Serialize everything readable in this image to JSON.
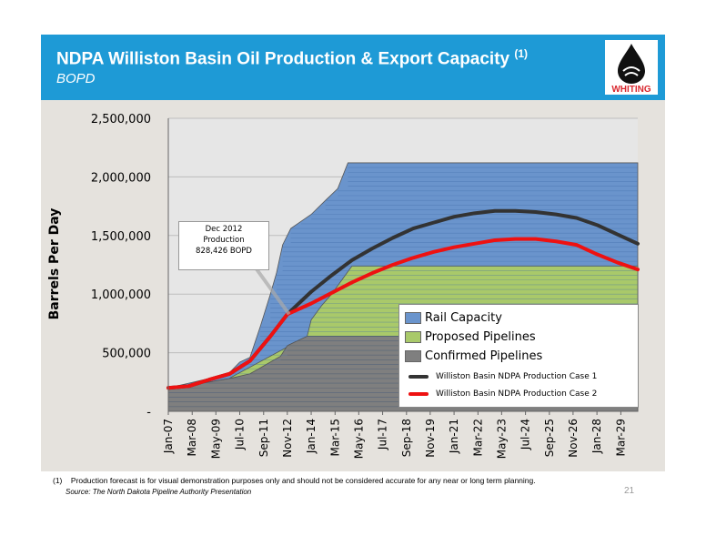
{
  "header": {
    "title": "NDPA Williston Basin Oil Production & Export Capacity",
    "title_note": "(1)",
    "subtitle": "BOPD",
    "logo_text": "WHITING",
    "bg_color": "#1e9ad6"
  },
  "chart_data": {
    "type": "area",
    "ylabel": "Barrels Per Day",
    "ylim": [
      0,
      2500000
    ],
    "yticks": [
      0,
      500000,
      1000000,
      1500000,
      2000000,
      2500000
    ],
    "ytick_labels": [
      "-",
      "500,000",
      "1,000,000",
      "1,500,000",
      "2,000,000",
      "2,500,000"
    ],
    "xlim": [
      2007.0,
      2030.0
    ],
    "xtick_labels": [
      "Jan-07",
      "Mar-08",
      "May-09",
      "Jul-10",
      "Sep-11",
      "Nov-12",
      "Jan-14",
      "Mar-15",
      "May-16",
      "Jul-17",
      "Sep-18",
      "Nov-19",
      "Jan-21",
      "Mar-22",
      "May-23",
      "Jul-24",
      "Sep-25",
      "Nov-26",
      "Jan-28",
      "Mar-29"
    ],
    "xtick_values": [
      2007.0,
      2008.17,
      2009.33,
      2010.5,
      2011.67,
      2012.83,
      2014.0,
      2015.17,
      2016.33,
      2017.5,
      2018.67,
      2019.83,
      2021.0,
      2022.17,
      2023.33,
      2024.5,
      2025.67,
      2026.83,
      2028.0,
      2029.17
    ],
    "series": [
      {
        "name": "Confirmed Pipelines",
        "color": "#7f7f7f",
        "kind": "area",
        "x": [
          2007.0,
          2008.0,
          2009.0,
          2010.0,
          2011.0,
          2011.5,
          2012.0,
          2012.5,
          2012.83,
          2013.3,
          2013.8,
          2014.0,
          2030.0
        ],
        "y": [
          200000,
          220000,
          250000,
          280000,
          320000,
          370000,
          420000,
          470000,
          560000,
          600000,
          640000,
          640000,
          640000
        ]
      },
      {
        "name": "Proposed Pipelines",
        "color": "#a9c96a",
        "kind": "area",
        "x": [
          2007.0,
          2013.8,
          2014.0,
          2014.5,
          2015.0,
          2015.5,
          2016.0,
          2030.0
        ],
        "y": [
          0,
          640000,
          780000,
          900000,
          1000000,
          1120000,
          1240000,
          1240000
        ],
        "note": "cumulative total"
      },
      {
        "name": "Rail Capacity",
        "color": "#6a94cc",
        "kind": "area",
        "x": [
          2007.0,
          2008.0,
          2009.0,
          2010.0,
          2010.5,
          2011.0,
          2011.5,
          2012.0,
          2012.3,
          2012.6,
          2013.0,
          2013.5,
          2014.0,
          2014.7,
          2015.3,
          2015.8,
          2030.0
        ],
        "y": [
          200000,
          240000,
          280000,
          330000,
          420000,
          460000,
          720000,
          1000000,
          1180000,
          1420000,
          1560000,
          1620000,
          1680000,
          1800000,
          1900000,
          2120000,
          2120000
        ],
        "note": "cumulative total"
      },
      {
        "name": "Williston Basin NDPA Production Case 1",
        "color": "#333333",
        "kind": "line",
        "x": [
          2007.0,
          2008.0,
          2009.0,
          2010.0,
          2011.0,
          2012.0,
          2012.83,
          2014.0,
          2015.0,
          2016.0,
          2017.0,
          2018.0,
          2019.0,
          2020.0,
          2021.0,
          2022.0,
          2023.0,
          2024.0,
          2025.0,
          2026.0,
          2027.0,
          2028.0,
          2029.0,
          2030.0
        ],
        "y": [
          200000,
          215000,
          270000,
          320000,
          430000,
          640000,
          828000,
          1020000,
          1160000,
          1290000,
          1390000,
          1480000,
          1560000,
          1610000,
          1660000,
          1690000,
          1710000,
          1710000,
          1700000,
          1680000,
          1650000,
          1590000,
          1510000,
          1430000
        ]
      },
      {
        "name": "Williston Basin NDPA Production Case 2",
        "color": "#ee1111",
        "kind": "line",
        "x": [
          2007.0,
          2008.0,
          2009.0,
          2010.0,
          2011.0,
          2012.0,
          2012.83,
          2014.0,
          2015.0,
          2016.0,
          2017.0,
          2018.0,
          2019.0,
          2020.0,
          2021.0,
          2022.0,
          2023.0,
          2024.0,
          2025.0,
          2026.0,
          2027.0,
          2028.0,
          2029.0,
          2030.0
        ],
        "y": [
          200000,
          215000,
          270000,
          320000,
          430000,
          640000,
          828000,
          920000,
          1010000,
          1100000,
          1180000,
          1250000,
          1310000,
          1360000,
          1400000,
          1430000,
          1460000,
          1470000,
          1470000,
          1450000,
          1420000,
          1340000,
          1270000,
          1210000
        ]
      }
    ],
    "annotation": {
      "lines": [
        "Dec 2012",
        "Production",
        "828,426 BOPD"
      ],
      "x": 2012.92,
      "y": 828426
    },
    "grid": true,
    "legend_placement": "bottom-right"
  },
  "footnote": {
    "number": "(1)",
    "text": "Production forecast is for visual demonstration purposes only and should not be considered accurate for any near or long term planning.",
    "source": "Source: The North Dakota Pipeline Authority Presentation",
    "page": "21"
  }
}
